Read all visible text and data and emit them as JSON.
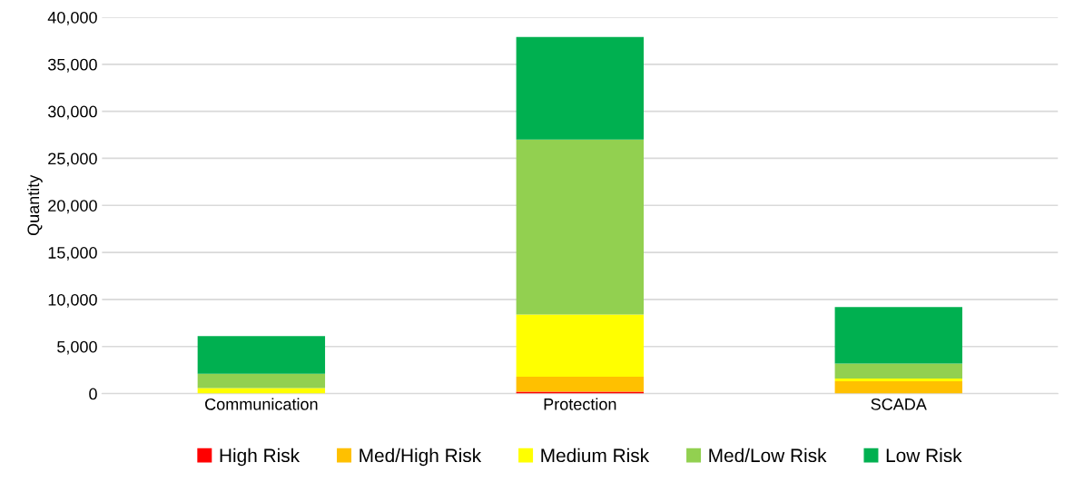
{
  "chart_data": {
    "type": "bar",
    "stacked": true,
    "ylabel": "Quantity",
    "categories": [
      "Communication",
      "Protection",
      "SCADA"
    ],
    "series": [
      {
        "name": "High Risk",
        "color": "#ff0000",
        "values": [
          0,
          200,
          0
        ]
      },
      {
        "name": "Med/High Risk",
        "color": "#ffc000",
        "values": [
          0,
          1600,
          1300
        ]
      },
      {
        "name": "Medium Risk",
        "color": "#ffff00",
        "values": [
          600,
          6600,
          300
        ]
      },
      {
        "name": "Med/Low Risk",
        "color": "#92d050",
        "values": [
          1500,
          18600,
          1600
        ]
      },
      {
        "name": "Low Risk",
        "color": "#00b050",
        "values": [
          4000,
          10900,
          6000
        ]
      }
    ],
    "ylim": [
      0,
      40000
    ],
    "yticks": [
      {
        "value": 0,
        "label": "0"
      },
      {
        "value": 5000,
        "label": "5,000"
      },
      {
        "value": 10000,
        "label": "10,000"
      },
      {
        "value": 15000,
        "label": "15,000"
      },
      {
        "value": 20000,
        "label": "20,000"
      },
      {
        "value": 25000,
        "label": "25,000"
      },
      {
        "value": 30000,
        "label": "30,000"
      },
      {
        "value": 35000,
        "label": "35,000"
      },
      {
        "value": 40000,
        "label": "40,000"
      }
    ],
    "grid": "y",
    "legend": "bottom"
  }
}
